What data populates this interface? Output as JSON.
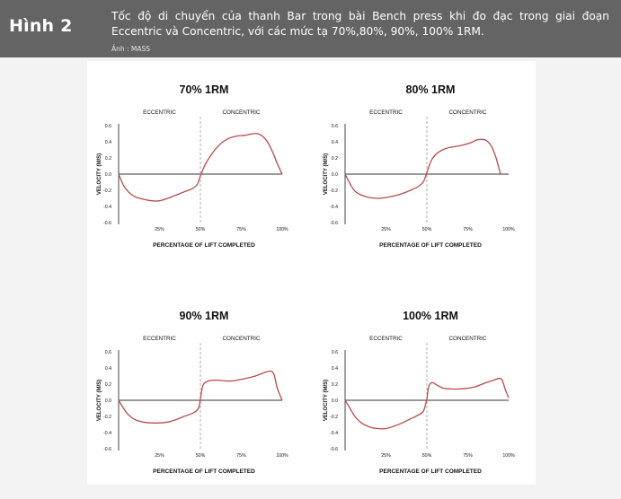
{
  "header": {
    "label": "Hình 2",
    "caption": "Tốc độ di chuyển của thanh Bar trong bài Bench press khi đo đạc trong giai đoạn Eccentric và Concentric, với các mức tạ 70%,80%, 90%, 100% 1RM.",
    "credit": "Ảnh : MASS"
  },
  "colors": {
    "header_bg": "#646464",
    "curve": "#b84a4a",
    "axis": "#333333",
    "divider": "#9a9a9a"
  },
  "chart_data": [
    {
      "type": "line",
      "title": "70% 1RM",
      "phase_labels": [
        "ECCENTRIC",
        "CONCENTRIC"
      ],
      "xlabel": "PERCENTAGE OF LIFT COMPLETED",
      "ylabel": "VELOCITY (M/S)",
      "xlim": [
        0,
        100
      ],
      "ylim": [
        -0.6,
        0.6
      ],
      "x_ticks": [
        "25%",
        "50%",
        "75%",
        "100%"
      ],
      "y_ticks": [
        "0.6",
        "0.4",
        "0.2",
        "0.0",
        "-0.2",
        "-0.4",
        "-0.6"
      ],
      "phase_boundary": 50,
      "series": [
        {
          "x": [
            0,
            3,
            6,
            10,
            15,
            20,
            25,
            30,
            35,
            40,
            45,
            48,
            50,
            53,
            57,
            62,
            67,
            72,
            77,
            82,
            85,
            88,
            91,
            94,
            97,
            100
          ],
          "y": [
            0,
            -0.14,
            -0.22,
            -0.28,
            -0.31,
            -0.33,
            -0.33,
            -0.3,
            -0.26,
            -0.22,
            -0.18,
            -0.13,
            -0.02,
            0.12,
            0.25,
            0.37,
            0.44,
            0.47,
            0.48,
            0.5,
            0.5,
            0.47,
            0.4,
            0.28,
            0.13,
            0
          ]
        }
      ]
    },
    {
      "type": "line",
      "title": "80% 1RM",
      "phase_labels": [
        "ECCENTRIC",
        "CONCENTRIC"
      ],
      "xlabel": "PERCENTAGE OF LIFT COMPLETED",
      "ylabel": "VELOCITY (M/S)",
      "xlim": [
        0,
        100
      ],
      "ylim": [
        -0.6,
        0.6
      ],
      "x_ticks": [
        "25%",
        "50%",
        "75%",
        "100%"
      ],
      "y_ticks": [
        "0.6",
        "0.4",
        "0.2",
        "0.0",
        "-0.2",
        "-0.4",
        "-0.6"
      ],
      "phase_boundary": 50,
      "series": [
        {
          "x": [
            0,
            3,
            6,
            10,
            15,
            20,
            25,
            30,
            35,
            40,
            45,
            48,
            50,
            53,
            57,
            62,
            67,
            72,
            77,
            80,
            83,
            86,
            89,
            92,
            95
          ],
          "y": [
            0,
            -0.12,
            -0.21,
            -0.26,
            -0.29,
            -0.3,
            -0.29,
            -0.27,
            -0.24,
            -0.2,
            -0.15,
            -0.09,
            0.02,
            0.18,
            0.27,
            0.32,
            0.34,
            0.36,
            0.39,
            0.42,
            0.43,
            0.42,
            0.36,
            0.22,
            0
          ]
        }
      ]
    },
    {
      "type": "line",
      "title": "90% 1RM",
      "phase_labels": [
        "ECCENTRIC",
        "CONCENTRIC"
      ],
      "xlabel": "PERCENTAGE OF LIFT COMPLETED",
      "ylabel": "VELOCITY (M/S)",
      "xlim": [
        0,
        100
      ],
      "ylim": [
        -0.6,
        0.6
      ],
      "x_ticks": [
        "25%",
        "50%",
        "75%",
        "100%"
      ],
      "y_ticks": [
        "0.6",
        "0.4",
        "0.2",
        "0.0",
        "-0.2",
        "-0.4",
        "-0.6"
      ],
      "phase_boundary": 50,
      "series": [
        {
          "x": [
            0,
            3,
            6,
            10,
            15,
            20,
            25,
            30,
            35,
            40,
            44,
            47,
            49,
            50,
            51,
            52,
            55,
            60,
            65,
            70,
            75,
            80,
            85,
            90,
            93,
            95,
            97,
            100
          ],
          "y": [
            0,
            -0.1,
            -0.18,
            -0.24,
            -0.27,
            -0.28,
            -0.28,
            -0.27,
            -0.24,
            -0.2,
            -0.17,
            -0.14,
            -0.09,
            0.02,
            0.14,
            0.2,
            0.24,
            0.25,
            0.24,
            0.24,
            0.26,
            0.28,
            0.31,
            0.35,
            0.36,
            0.32,
            0.15,
            0
          ]
        }
      ]
    },
    {
      "type": "line",
      "title": "100% 1RM",
      "phase_labels": [
        "ECCENTRIC",
        "CONCENTRIC"
      ],
      "xlabel": "PERCENTAGE OF LIFT COMPLETED",
      "ylabel": "VELOCITY (M/S)",
      "xlim": [
        0,
        100
      ],
      "ylim": [
        -0.6,
        0.6
      ],
      "x_ticks": [
        "25%",
        "50%",
        "75%",
        "100%"
      ],
      "y_ticks": [
        "0.6",
        "0.4",
        "0.2",
        "0.0",
        "-0.2",
        "-0.4",
        "-0.6"
      ],
      "phase_boundary": 50,
      "series": [
        {
          "x": [
            0,
            3,
            6,
            10,
            15,
            20,
            25,
            30,
            35,
            40,
            45,
            48,
            50,
            51,
            53,
            56,
            60,
            65,
            70,
            75,
            80,
            85,
            88,
            91,
            94,
            96,
            98,
            100
          ],
          "y": [
            0,
            -0.1,
            -0.2,
            -0.28,
            -0.33,
            -0.35,
            -0.35,
            -0.32,
            -0.28,
            -0.23,
            -0.18,
            -0.13,
            0.02,
            0.16,
            0.22,
            0.19,
            0.15,
            0.14,
            0.14,
            0.15,
            0.17,
            0.21,
            0.23,
            0.25,
            0.27,
            0.25,
            0.13,
            0.03
          ]
        }
      ]
    }
  ]
}
